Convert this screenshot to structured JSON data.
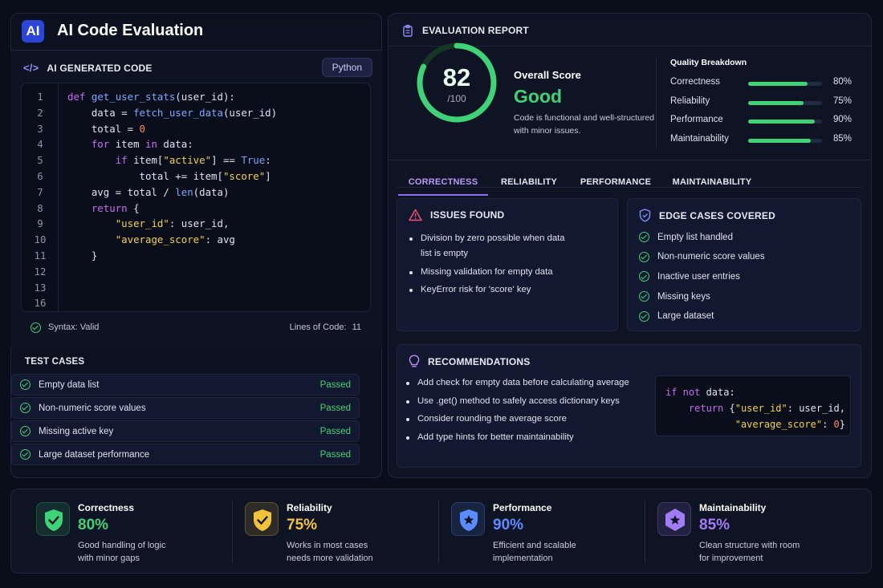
{
  "app": {
    "logo": "AI",
    "title": "AI Code Evaluation"
  },
  "code_panel": {
    "heading": "AI GENERATED CODE",
    "language": "Python",
    "lines": [
      {
        "n": "1",
        "html": "<span class=\"kw\">def</span> <span class=\"fn\">get_user_stats</span>(user_id):"
      },
      {
        "n": "2",
        "html": "    data = <span class=\"fn\">fetch_user_data</span>(user_id)"
      },
      {
        "n": "3",
        "html": "    total = <span class=\"num\">0</span>"
      },
      {
        "n": "4",
        "html": "    <span class=\"kw\">for</span> item <span class=\"kw\">in</span> data:"
      },
      {
        "n": "5",
        "html": "        <span class=\"kw\">if</span> item[<span class=\"st\">\"active\"</span>] == <span class=\"bool\">True</span>:"
      },
      {
        "n": "6",
        "html": "            total += item[<span class=\"st\">\"score\"</span>]"
      },
      {
        "n": "7",
        "html": "    avg = total / <span class=\"fn\">len</span>(data)"
      },
      {
        "n": "8",
        "html": "    <span class=\"kw\">return</span> {"
      },
      {
        "n": "9",
        "html": "        <span class=\"st\">\"user_id\"</span>: user_id,"
      },
      {
        "n": "10",
        "html": "        <span class=\"st\">\"average_score\"</span>: avg"
      },
      {
        "n": "11",
        "html": "    }"
      },
      {
        "n": "12",
        "html": ""
      },
      {
        "n": "13",
        "html": ""
      },
      {
        "n": "16",
        "html": ""
      }
    ],
    "syntax_status": "Syntax: Valid",
    "loc_label": "Lines of Code:",
    "loc_value": "11"
  },
  "tests": {
    "heading": "TEST CASES",
    "items": [
      {
        "label": "Empty data list",
        "status": "Passed"
      },
      {
        "label": "Non-numeric score values",
        "status": "Passed"
      },
      {
        "label": "Missing active key",
        "status": "Passed"
      },
      {
        "label": "Large dataset performance",
        "status": "Passed"
      }
    ]
  },
  "report": {
    "heading": "EVALUATION REPORT",
    "score": "82",
    "score_max": "/100",
    "score_fraction": 0.82,
    "overall_label": "Overall Score",
    "grade": "Good",
    "summary_line1": "Code is functional and well-structured",
    "summary_line2": "with minor issues.",
    "breakdown_title": "Quality Breakdown",
    "breakdown": [
      {
        "label": "Correctness",
        "value": 80,
        "pct": "80%"
      },
      {
        "label": "Reliability",
        "value": 75,
        "pct": "75%"
      },
      {
        "label": "Performance",
        "value": 90,
        "pct": "90%"
      },
      {
        "label": "Maintainability",
        "value": 85,
        "pct": "85%"
      }
    ],
    "tabs": [
      "CORRECTNESS",
      "RELIABILITY",
      "PERFORMANCE",
      "MAINTAINABILITY"
    ]
  },
  "issues": {
    "heading": "ISSUES FOUND",
    "items": [
      {
        "line1": "Division by zero possible when data",
        "line2": "list is empty"
      },
      {
        "line1": "Missing validation for empty data",
        "line2": ""
      },
      {
        "line1": "KeyError risk for 'score' key",
        "line2": ""
      }
    ]
  },
  "edge_cases": {
    "heading": "EDGE CASES COVERED",
    "items": [
      "Empty list handled",
      "Non-numeric score values",
      "Inactive user entries",
      "Missing keys",
      "Large dataset"
    ]
  },
  "recommendations": {
    "heading": "RECOMMENDATIONS",
    "items": [
      "Add check for empty data before calculating average",
      "Use .get() method to safely access dictionary keys",
      "Consider rounding the average score",
      "Add type hints for better maintainability"
    ],
    "code_html": "<span class=\"kw\">if not</span> data:\n    <span class=\"kw\">return</span> {<span class=\"st\">\"user_id\"</span>: user_id,\n            <span class=\"st\">\"average_score\"</span>: <span class=\"num\">0</span>}"
  },
  "metrics": [
    {
      "title": "Correctness",
      "value": "80%",
      "desc1": "Good handling of logic",
      "desc2": "with minor gaps",
      "color": "#3fd276"
    },
    {
      "title": "Reliability",
      "value": "75%",
      "desc1": "Works in most cases",
      "desc2": "needs more validation",
      "color": "#f2c23a"
    },
    {
      "title": "Performance",
      "value": "90%",
      "desc1": "Efficient and scalable",
      "desc2": "implementation",
      "color": "#5b8cff"
    },
    {
      "title": "Maintainability",
      "value": "85%",
      "desc1": "Clean structure with room",
      "desc2": "for improvement",
      "color": "#a07cf5"
    }
  ]
}
